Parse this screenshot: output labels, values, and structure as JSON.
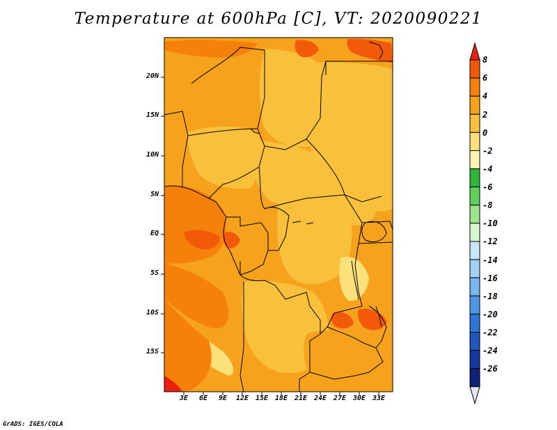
{
  "title": "Temperature at 600hPa [C], VT: 2020090221",
  "footer": "GrADS: IGES/COLA",
  "map": {
    "lat_ticks": [
      "20N",
      "15N",
      "10N",
      "5N",
      "EQ",
      "5S",
      "10S",
      "15S"
    ],
    "lon_ticks": [
      "3E",
      "6E",
      "9E",
      "12E",
      "15E",
      "18E",
      "21E",
      "24E",
      "27E",
      "30E",
      "33E"
    ]
  },
  "colorbar": {
    "labels": [
      "8",
      "6",
      "4",
      "2",
      "0",
      "-2",
      "-4",
      "-6",
      "-8",
      "-10",
      "-12",
      "-14",
      "-16",
      "-18",
      "-20",
      "-22",
      "-24",
      "-26"
    ],
    "colors": [
      "#e8220c",
      "#f25a0a",
      "#f5800a",
      "#f7a21c",
      "#f9c03c",
      "#fce07a",
      "#fff5b0",
      "#2fb43c",
      "#5fce5a",
      "#9ce58c",
      "#d6f7cf",
      "#c9e7fb",
      "#a3d0f7",
      "#78b6f0",
      "#4f97e6",
      "#2e76d8",
      "#1f55bf",
      "#143aa0",
      "#0d2178",
      "#e6e2f5"
    ]
  }
}
